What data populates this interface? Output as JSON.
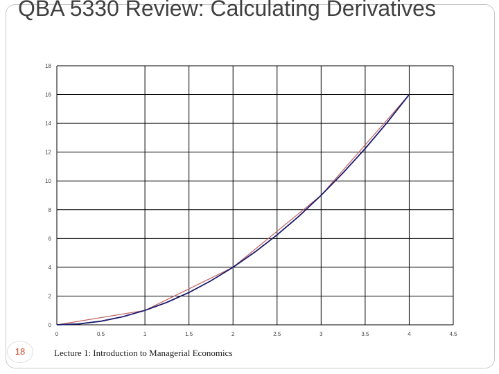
{
  "slide": {
    "title": "QBA 5330 Review: Calculating Derivatives",
    "page_number": "18",
    "footer": "Lecture 1: Introduction to Managerial Economics"
  },
  "chart_data": {
    "type": "line",
    "title": "",
    "xlabel": "",
    "ylabel": "",
    "xlim": [
      0,
      4.5
    ],
    "ylim": [
      0,
      18
    ],
    "x_ticks": [
      "0",
      "0.5",
      "1",
      "1.5",
      "2",
      "2.5",
      "3",
      "3.5",
      "4",
      "4.5"
    ],
    "y_ticks": [
      "0",
      "2",
      "4",
      "6",
      "8",
      "10",
      "12",
      "14",
      "16",
      "18"
    ],
    "grid": true,
    "legend": "none",
    "series": [
      {
        "x": [
          0,
          1,
          2,
          3,
          4
        ],
        "y": [
          0,
          1,
          4,
          9,
          16
        ],
        "color": "#c06060",
        "style": "polyline"
      },
      {
        "x": [
          0,
          0.25,
          0.5,
          0.75,
          1,
          1.25,
          1.5,
          1.75,
          2,
          2.25,
          2.5,
          2.75,
          3,
          3.25,
          3.5,
          3.75,
          4
        ],
        "y": [
          0,
          0.0625,
          0.25,
          0.5625,
          1,
          1.5625,
          2.25,
          3.0625,
          4,
          5.0625,
          6.25,
          7.5625,
          9,
          10.5625,
          12.25,
          14.0625,
          16
        ],
        "color": "#1a1a6e",
        "style": "curve"
      }
    ]
  }
}
